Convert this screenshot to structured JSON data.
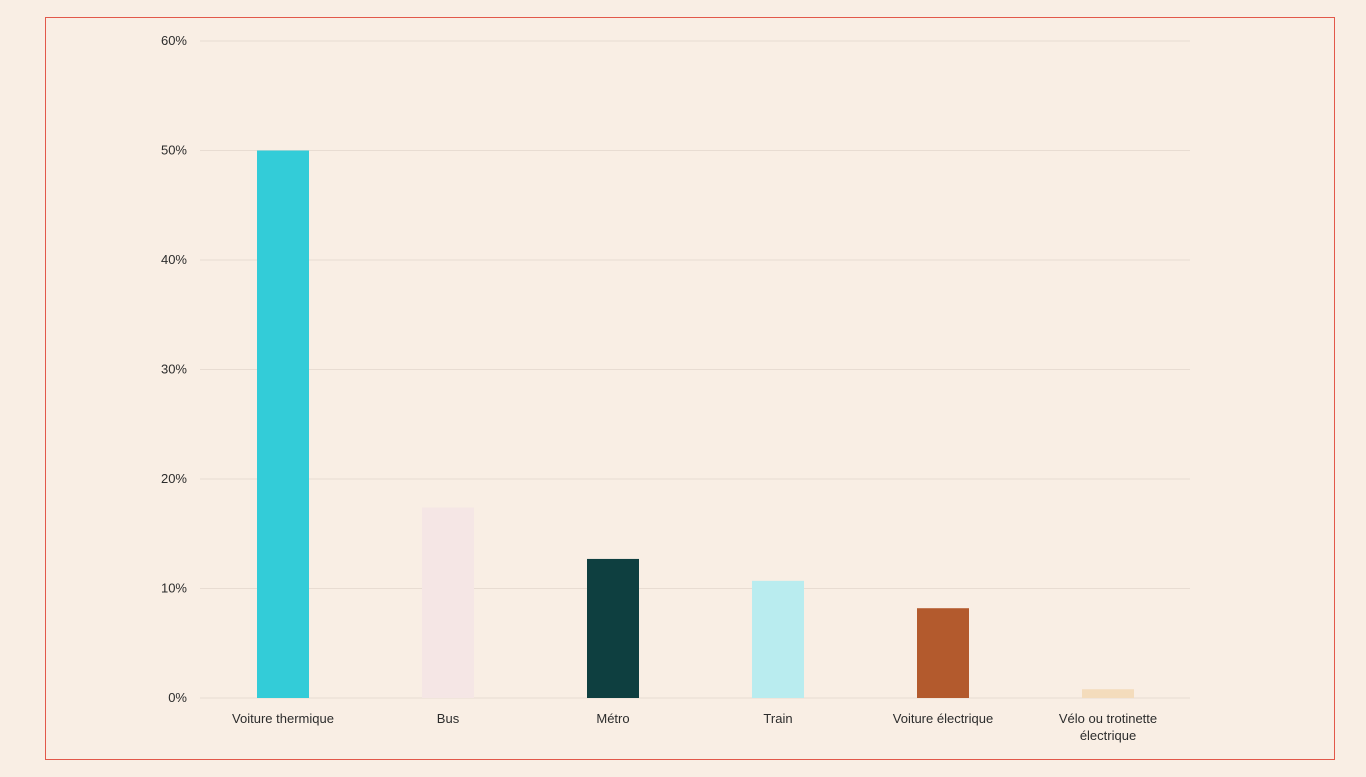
{
  "chart_data": {
    "type": "bar",
    "categories": [
      [
        "Voiture thermique"
      ],
      [
        "Bus"
      ],
      [
        "Métro"
      ],
      [
        "Train"
      ],
      [
        "Voiture électrique"
      ],
      [
        "Vélo ou trotinette",
        "électrique"
      ]
    ],
    "values": [
      50,
      17.4,
      12.7,
      10.7,
      8.2,
      0.8
    ],
    "colors": [
      "#33ccd8",
      "#f5e6e5",
      "#0e3f40",
      "#b9ecef",
      "#b35a2d",
      "#f4dcbc"
    ],
    "ylim": [
      0,
      60
    ],
    "yticks": [
      0,
      10,
      20,
      30,
      40,
      50,
      60
    ],
    "ytick_suffix": "%",
    "grid": true,
    "gridColor": "#e8dcd2",
    "title": "",
    "xlabel": "",
    "ylabel": ""
  }
}
